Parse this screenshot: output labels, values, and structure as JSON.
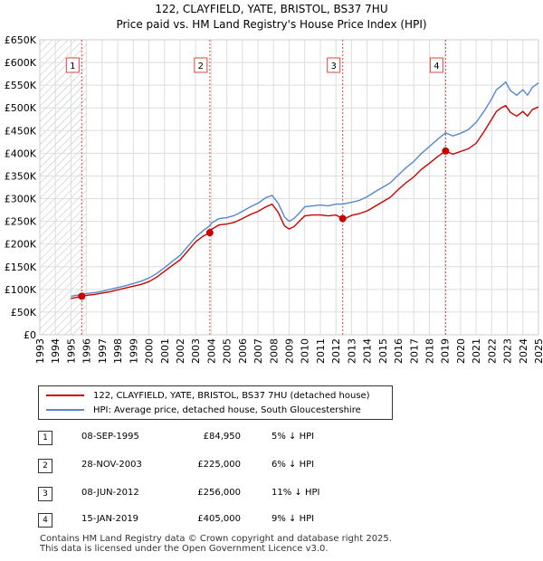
{
  "chart_data": {
    "type": "line",
    "title": "122, CLAYFIELD, YATE, BRISTOL, BS37 7HU",
    "subtitle": "Price paid vs. HM Land Registry's House Price Index (HPI)",
    "xlabel": "",
    "ylabel": "",
    "xlim": [
      1993,
      2025
    ],
    "ylim": [
      0,
      650000
    ],
    "x_ticks": [
      "1993",
      "1994",
      "1995",
      "1996",
      "1997",
      "1998",
      "1999",
      "2000",
      "2001",
      "2002",
      "2003",
      "2004",
      "2005",
      "2006",
      "2007",
      "2008",
      "2009",
      "2010",
      "2011",
      "2012",
      "2013",
      "2014",
      "2015",
      "2016",
      "2017",
      "2018",
      "2019",
      "2020",
      "2021",
      "2022",
      "2023",
      "2024",
      "2025"
    ],
    "y_ticks": [
      "£0",
      "£50K",
      "£100K",
      "£150K",
      "£200K",
      "£250K",
      "£300K",
      "£350K",
      "£400K",
      "£450K",
      "£500K",
      "£550K",
      "£600K",
      "£650K"
    ],
    "hatch_before": 1995.0,
    "series": [
      {
        "name": "122, CLAYFIELD, YATE, BRISTOL, BS37 7HU (detached house)",
        "color": "#cc0000",
        "x": [
          1995.0,
          1995.69,
          1996.0,
          1996.5,
          1997.0,
          1997.5,
          1998.0,
          1998.5,
          1999.0,
          1999.5,
          2000.0,
          2000.5,
          2001.0,
          2001.5,
          2002.0,
          2002.5,
          2003.0,
          2003.5,
          2003.91,
          2004.0,
          2004.5,
          2005.0,
          2005.5,
          2006.0,
          2006.5,
          2007.0,
          2007.5,
          2007.9,
          2008.3,
          2008.7,
          2009.0,
          2009.3,
          2009.7,
          2010.0,
          2010.5,
          2011.0,
          2011.5,
          2012.0,
          2012.44,
          2012.7,
          2013.0,
          2013.5,
          2014.0,
          2014.5,
          2015.0,
          2015.5,
          2016.0,
          2016.5,
          2017.0,
          2017.5,
          2018.0,
          2018.5,
          2019.04,
          2019.5,
          2020.0,
          2020.5,
          2021.0,
          2021.5,
          2022.0,
          2022.3,
          2022.6,
          2022.9,
          2023.2,
          2023.6,
          2024.0,
          2024.3,
          2024.6,
          2025.0
        ],
        "values": [
          80000,
          84950,
          87000,
          89000,
          92000,
          95000,
          99000,
          103000,
          107000,
          111000,
          117000,
          127000,
          140000,
          153000,
          165000,
          185000,
          205000,
          218000,
          225000,
          232000,
          242000,
          244000,
          248000,
          256000,
          265000,
          272000,
          282000,
          288000,
          270000,
          240000,
          233000,
          238000,
          252000,
          262000,
          264000,
          264000,
          262000,
          264000,
          256000,
          258000,
          263000,
          267000,
          273000,
          283000,
          293000,
          303000,
          320000,
          335000,
          348000,
          365000,
          378000,
          392000,
          405000,
          398000,
          404000,
          410000,
          422000,
          447000,
          475000,
          492000,
          500000,
          505000,
          490000,
          482000,
          492000,
          482000,
          496000,
          502000
        ]
      },
      {
        "name": "HPI: Average price, detached house, South Gloucestershire",
        "color": "#5588cc",
        "x": [
          1995.0,
          1995.69,
          1996.0,
          1996.5,
          1997.0,
          1997.5,
          1998.0,
          1998.5,
          1999.0,
          1999.5,
          2000.0,
          2000.5,
          2001.0,
          2001.5,
          2002.0,
          2002.5,
          2003.0,
          2003.5,
          2003.91,
          2004.0,
          2004.5,
          2005.0,
          2005.5,
          2006.0,
          2006.5,
          2007.0,
          2007.5,
          2007.9,
          2008.3,
          2008.7,
          2009.0,
          2009.3,
          2009.7,
          2010.0,
          2010.5,
          2011.0,
          2011.5,
          2012.0,
          2012.44,
          2012.7,
          2013.0,
          2013.5,
          2014.0,
          2014.5,
          2015.0,
          2015.5,
          2016.0,
          2016.5,
          2017.0,
          2017.5,
          2018.0,
          2018.5,
          2019.04,
          2019.5,
          2020.0,
          2020.5,
          2021.0,
          2021.5,
          2022.0,
          2022.3,
          2022.6,
          2022.9,
          2023.2,
          2023.6,
          2024.0,
          2024.3,
          2024.6,
          2025.0
        ],
        "values": [
          85000,
          89000,
          91000,
          93000,
          96000,
          100000,
          104000,
          108000,
          113000,
          118000,
          125000,
          135000,
          148000,
          162000,
          175000,
          195000,
          215000,
          230000,
          240000,
          246000,
          256000,
          258000,
          263000,
          272000,
          282000,
          290000,
          302000,
          307000,
          290000,
          260000,
          250000,
          256000,
          270000,
          282000,
          284000,
          286000,
          284000,
          288000,
          288000,
          290000,
          292000,
          296000,
          304000,
          315000,
          325000,
          335000,
          352000,
          368000,
          382000,
          400000,
          415000,
          430000,
          445000,
          438000,
          444000,
          452000,
          468000,
          492000,
          520000,
          540000,
          548000,
          557000,
          538000,
          528000,
          540000,
          528000,
          545000,
          555000
        ]
      }
    ],
    "sales": [
      {
        "n": "1",
        "x": 1995.69,
        "price": 84950
      },
      {
        "n": "2",
        "x": 2003.91,
        "price": 225000
      },
      {
        "n": "3",
        "x": 2012.44,
        "price": 256000
      },
      {
        "n": "4",
        "x": 2019.04,
        "price": 405000
      }
    ]
  },
  "legend": {
    "red_label": "122, CLAYFIELD, YATE, BRISTOL, BS37 7HU (detached house)",
    "blue_label": "HPI: Average price, detached house, South Gloucestershire"
  },
  "table": [
    {
      "n": "1",
      "date": "08-SEP-1995",
      "price": "£84,950",
      "delta": "5% ↓ HPI"
    },
    {
      "n": "2",
      "date": "28-NOV-2003",
      "price": "£225,000",
      "delta": "6% ↓ HPI"
    },
    {
      "n": "3",
      "date": "08-JUN-2012",
      "price": "£256,000",
      "delta": "11% ↓ HPI"
    },
    {
      "n": "4",
      "date": "15-JAN-2019",
      "price": "£405,000",
      "delta": "9% ↓ HPI"
    }
  ],
  "footer": {
    "line1": "Contains HM Land Registry data © Crown copyright and database right 2025.",
    "line2": "This data is licensed under the Open Government Licence v3.0."
  }
}
